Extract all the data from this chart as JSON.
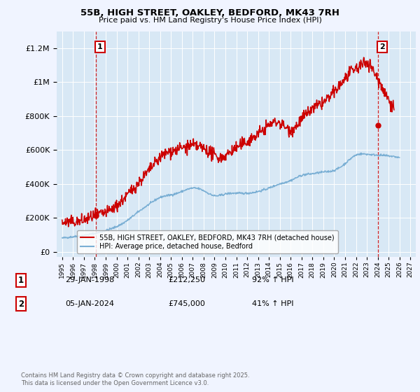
{
  "title": "55B, HIGH STREET, OAKLEY, BEDFORD, MK43 7RH",
  "subtitle": "Price paid vs. HM Land Registry's House Price Index (HPI)",
  "legend_label_1": "55B, HIGH STREET, OAKLEY, BEDFORD, MK43 7RH (detached house)",
  "legend_label_2": "HPI: Average price, detached house, Bedford",
  "annotation1_date": "29-JAN-1998",
  "annotation1_price": "£212,250",
  "annotation1_hpi": "92% ↑ HPI",
  "annotation2_date": "05-JAN-2024",
  "annotation2_price": "£745,000",
  "annotation2_hpi": "41% ↑ HPI",
  "footer": "Contains HM Land Registry data © Crown copyright and database right 2025.\nThis data is licensed under the Open Government Licence v3.0.",
  "sale1_year": 1998.08,
  "sale1_price": 212250,
  "sale2_year": 2024.02,
  "sale2_price": 745000,
  "background_color": "#f0f4ff",
  "plot_bg_color": "#d8e8f5",
  "grid_color": "#ffffff",
  "red_line_color": "#cc0000",
  "blue_line_color": "#7aafd4",
  "marker_color": "#cc0000",
  "annotation_box_color": "#cc0000",
  "ylim_max": 1300000,
  "ylim_min": -30000,
  "xlim_min": 1994.5,
  "xlim_max": 2027.5
}
